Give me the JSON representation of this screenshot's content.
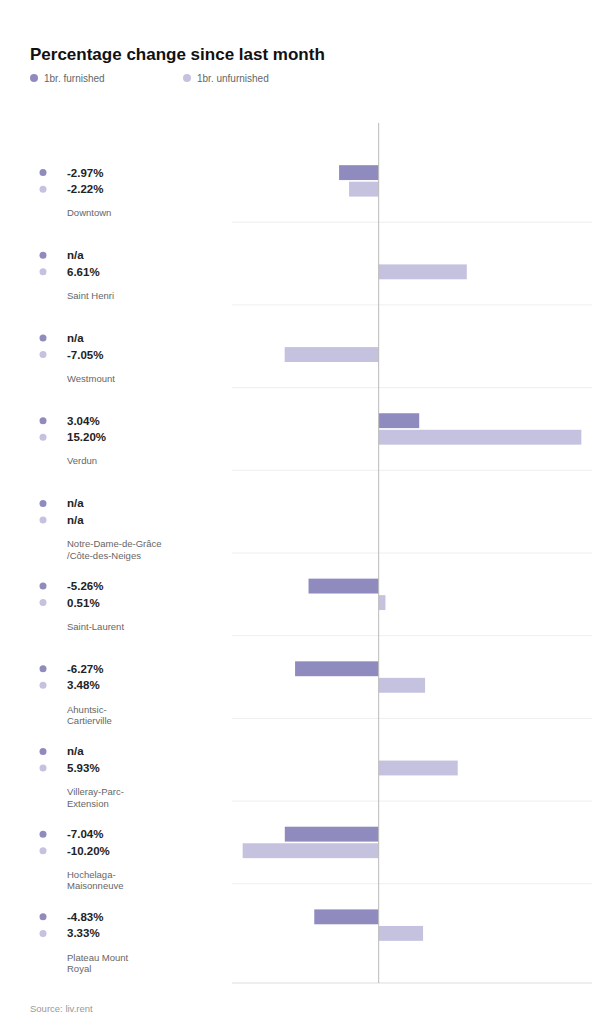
{
  "chart_data": {
    "type": "bar",
    "orientation": "horizontal",
    "title": "Percentage change since last month",
    "annotations": [
      "Source: liv.rent"
    ],
    "categories": [
      "Downtown",
      "Saint Henri",
      "Westmount",
      "Verdun",
      "Notre-Dame-de-Grâce\n/Côte-des-Neiges",
      "Saint-Laurent",
      "Ahuntsic-\nCartierville",
      "Villeray-Parc-\nExtension",
      "Hochelaga-\nMaisonneuve",
      "Plateau Mount\nRoyal"
    ],
    "series": [
      {
        "name": "1br. furnished",
        "color": "#8f8bbf",
        "values": [
          -2.97,
          null,
          null,
          3.04,
          null,
          -5.26,
          -6.27,
          null,
          -7.04,
          -4.83
        ],
        "value_labels": [
          "-2.97%",
          "n/a",
          "n/a",
          "3.04%",
          "n/a",
          "-5.26%",
          "-6.27%",
          "n/a",
          "-7.04%",
          "-4.83%"
        ]
      },
      {
        "name": "1br. unfurnished",
        "color": "#c5c2e0",
        "values": [
          -2.22,
          6.61,
          -7.05,
          15.2,
          null,
          0.51,
          3.48,
          5.93,
          -10.2,
          3.33
        ],
        "value_labels": [
          "-2.22%",
          "6.61%",
          "-7.05%",
          "15.20%",
          "n/a",
          "0.51%",
          "3.48%",
          "5.93%",
          "-10.20%",
          "3.33%"
        ]
      }
    ],
    "xlim": [
      -11,
      16
    ],
    "xticks": [
      0
    ],
    "tick_labels": false,
    "data_labels": true,
    "grid": false
  }
}
